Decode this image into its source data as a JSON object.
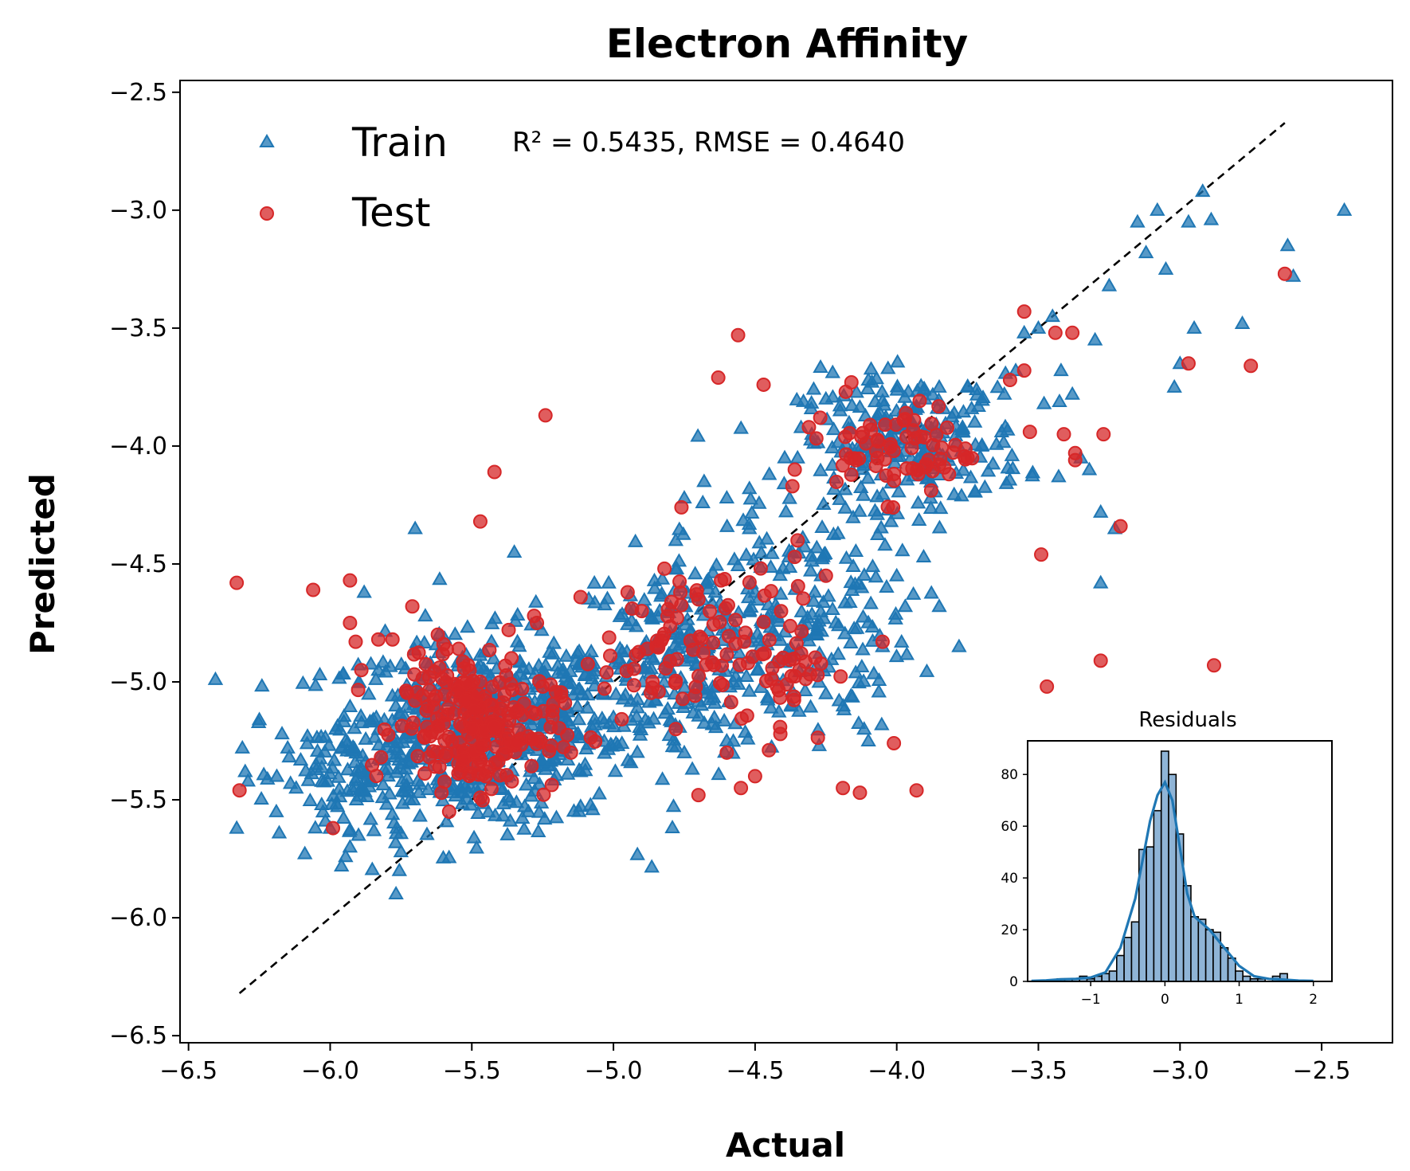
{
  "chart_data": {
    "type": "scatter",
    "title": "Electron Affinity",
    "xlabel": "Actual",
    "ylabel": "Predicted",
    "xlim": [
      -6.53,
      -2.25
    ],
    "ylim": [
      -6.53,
      -2.45
    ],
    "xticks": [
      -6.5,
      -6.0,
      -5.5,
      -5.0,
      -4.5,
      -4.0,
      -3.5,
      -3.0,
      -2.5
    ],
    "yticks": [
      -6.5,
      -6.0,
      -5.5,
      -5.0,
      -4.5,
      -4.0,
      -3.5,
      -3.0,
      -2.5
    ],
    "metrics_text": "R² = 0.5435,  RMSE = 0.4640",
    "identity_line": {
      "x": [
        -6.32,
        -2.63
      ],
      "y": [
        -6.32,
        -2.63
      ],
      "style": "dashed",
      "color": "#000000"
    },
    "legend_placement": "upper-left",
    "series": [
      {
        "name": "Train",
        "marker": "triangle",
        "color": "#1f77b4",
        "points": [
          [
            -6.33,
            -5.62
          ],
          [
            -6.31,
            -5.28
          ],
          [
            -6.3,
            -5.38
          ],
          [
            -6.29,
            -5.42
          ],
          [
            -6.25,
            -5.16
          ],
          [
            -6.19,
            -5.55
          ],
          [
            -6.18,
            -5.64
          ],
          [
            -6.17,
            -5.22
          ],
          [
            -6.15,
            -5.28
          ],
          [
            -6.14,
            -5.43
          ],
          [
            -6.12,
            -5.45
          ],
          [
            -6.08,
            -5.23
          ],
          [
            -6.05,
            -5.35
          ],
          [
            -6.03,
            -5.52
          ],
          [
            -6.0,
            -5.62
          ],
          [
            -5.98,
            -5.2
          ],
          [
            -5.96,
            -5.78
          ],
          [
            -5.93,
            -5.7
          ],
          [
            -5.9,
            -5.65
          ],
          [
            -5.88,
            -4.62
          ],
          [
            -5.83,
            -4.95
          ],
          [
            -5.75,
            -5.72
          ],
          [
            -5.7,
            -4.35
          ],
          [
            -5.62,
            -5.3
          ],
          [
            -5.5,
            -5.1
          ],
          [
            -5.35,
            -4.45
          ],
          [
            -5.2,
            -5.05
          ],
          [
            -5.1,
            -5.35
          ],
          [
            -5.0,
            -5.15
          ],
          [
            -4.98,
            -4.9
          ],
          [
            -4.85,
            -4.85
          ],
          [
            -4.78,
            -4.4
          ],
          [
            -4.75,
            -4.22
          ],
          [
            -4.68,
            -4.15
          ],
          [
            -4.6,
            -4.22
          ],
          [
            -4.52,
            -4.18
          ],
          [
            -4.45,
            -4.12
          ],
          [
            -4.35,
            -4.05
          ],
          [
            -4.3,
            -3.95
          ],
          [
            -4.25,
            -3.8
          ],
          [
            -4.2,
            -3.85
          ],
          [
            -4.1,
            -3.72
          ],
          [
            -4.02,
            -4.32
          ],
          [
            -3.95,
            -4.05
          ],
          [
            -3.9,
            -3.8
          ],
          [
            -3.85,
            -3.75
          ],
          [
            -3.75,
            -3.75
          ],
          [
            -3.7,
            -4.0
          ],
          [
            -3.62,
            -3.78
          ],
          [
            -3.58,
            -3.68
          ],
          [
            -3.55,
            -3.52
          ],
          [
            -3.5,
            -3.5
          ],
          [
            -3.48,
            -3.82
          ],
          [
            -3.45,
            -3.45
          ],
          [
            -3.42,
            -3.68
          ],
          [
            -3.38,
            -3.78
          ],
          [
            -3.35,
            -4.05
          ],
          [
            -3.32,
            -4.1
          ],
          [
            -3.3,
            -3.55
          ],
          [
            -3.28,
            -4.28
          ],
          [
            -3.25,
            -3.32
          ],
          [
            -3.23,
            -4.35
          ],
          [
            -3.28,
            -4.58
          ],
          [
            -3.15,
            -3.05
          ],
          [
            -3.12,
            -3.18
          ],
          [
            -3.08,
            -3.0
          ],
          [
            -3.05,
            -3.25
          ],
          [
            -3.02,
            -3.75
          ],
          [
            -3.0,
            -3.65
          ],
          [
            -2.97,
            -3.05
          ],
          [
            -2.95,
            -3.5
          ],
          [
            -2.92,
            -2.92
          ],
          [
            -2.89,
            -3.04
          ],
          [
            -2.78,
            -3.48
          ],
          [
            -2.62,
            -3.15
          ],
          [
            -2.6,
            -3.28
          ],
          [
            -2.42,
            -3.0
          ],
          [
            -4.0,
            -4.55
          ],
          [
            -3.97,
            -4.68
          ],
          [
            -4.05,
            -4.85
          ],
          [
            -4.1,
            -5.25
          ],
          [
            -4.25,
            -5.05
          ],
          [
            -4.6,
            -5.25
          ],
          [
            -4.75,
            -5.3
          ],
          [
            -5.25,
            -5.35
          ],
          [
            -5.3,
            -5.55
          ],
          [
            -5.4,
            -5.45
          ],
          [
            -3.78,
            -4.85
          ],
          [
            -3.85,
            -4.68
          ],
          [
            -4.52,
            -4.35
          ],
          [
            -4.5,
            -4.62
          ],
          [
            -4.8,
            -4.95
          ],
          [
            -4.7,
            -5.0
          ]
        ],
        "clusters": [
          {
            "center": [
              -5.5,
              -5.22
            ],
            "spread": [
              0.26,
              0.2
            ],
            "count": 520
          },
          {
            "center": [
              -4.75,
              -4.9
            ],
            "spread": [
              0.2,
              0.22
            ],
            "count": 200
          },
          {
            "center": [
              -4.35,
              -4.72
            ],
            "spread": [
              0.2,
              0.25
            ],
            "count": 180
          },
          {
            "center": [
              -3.95,
              -3.98
            ],
            "spread": [
              0.2,
              0.14
            ],
            "count": 230
          },
          {
            "center": [
              -5.12,
              -5.12
            ],
            "spread": [
              0.2,
              0.18
            ],
            "count": 110
          },
          {
            "center": [
              -5.9,
              -5.4
            ],
            "spread": [
              0.13,
              0.16
            ],
            "count": 80
          }
        ]
      },
      {
        "name": "Test",
        "marker": "circle",
        "color": "#d62728",
        "points": [
          [
            -6.33,
            -4.58
          ],
          [
            -6.32,
            -5.46
          ],
          [
            -6.06,
            -4.61
          ],
          [
            -5.99,
            -5.62
          ],
          [
            -5.93,
            -4.57
          ],
          [
            -5.93,
            -4.75
          ],
          [
            -5.91,
            -4.83
          ],
          [
            -5.89,
            -4.95
          ],
          [
            -5.83,
            -4.82
          ],
          [
            -5.78,
            -4.82
          ],
          [
            -5.71,
            -4.68
          ],
          [
            -5.62,
            -4.8
          ],
          [
            -5.6,
            -4.84
          ],
          [
            -5.58,
            -5.55
          ],
          [
            -5.47,
            -4.32
          ],
          [
            -5.42,
            -4.11
          ],
          [
            -5.37,
            -4.78
          ],
          [
            -5.36,
            -4.9
          ],
          [
            -5.28,
            -4.72
          ],
          [
            -5.27,
            -4.75
          ],
          [
            -5.24,
            -3.87
          ],
          [
            -5.25,
            -5.02
          ],
          [
            -5.22,
            -5.27
          ],
          [
            -5.15,
            -5.3
          ],
          [
            -4.95,
            -4.62
          ],
          [
            -4.9,
            -4.7
          ],
          [
            -4.88,
            -4.86
          ],
          [
            -4.82,
            -4.52
          ],
          [
            -4.76,
            -4.26
          ],
          [
            -4.7,
            -5.48
          ],
          [
            -4.63,
            -3.71
          ],
          [
            -4.56,
            -3.53
          ],
          [
            -4.55,
            -5.45
          ],
          [
            -4.5,
            -5.4
          ],
          [
            -4.47,
            -3.74
          ],
          [
            -4.36,
            -4.47
          ],
          [
            -4.36,
            -4.1
          ],
          [
            -4.31,
            -3.92
          ],
          [
            -4.27,
            -3.88
          ],
          [
            -4.18,
            -3.77
          ],
          [
            -4.19,
            -5.45
          ],
          [
            -4.13,
            -5.47
          ],
          [
            -4.16,
            -3.73
          ],
          [
            -4.05,
            -4.83
          ],
          [
            -4.01,
            -5.26
          ],
          [
            -3.93,
            -5.46
          ],
          [
            -3.75,
            -4.05
          ],
          [
            -3.55,
            -3.43
          ],
          [
            -3.53,
            -3.94
          ],
          [
            -3.49,
            -4.46
          ],
          [
            -3.47,
            -5.02
          ],
          [
            -3.44,
            -3.52
          ],
          [
            -3.41,
            -3.95
          ],
          [
            -3.38,
            -3.52
          ],
          [
            -3.37,
            -4.03
          ],
          [
            -3.37,
            -4.06
          ],
          [
            -3.28,
            -4.91
          ],
          [
            -3.27,
            -3.95
          ],
          [
            -3.21,
            -4.34
          ],
          [
            -2.97,
            -3.65
          ],
          [
            -2.88,
            -4.93
          ],
          [
            -2.75,
            -3.66
          ],
          [
            -2.63,
            -3.27
          ],
          [
            -3.55,
            -3.68
          ],
          [
            -3.6,
            -3.72
          ],
          [
            -4.25,
            -4.55
          ],
          [
            -4.35,
            -4.4
          ],
          [
            -4.78,
            -5.2
          ],
          [
            -4.6,
            -5.3
          ],
          [
            -4.7,
            -4.65
          ]
        ],
        "clusters": [
          {
            "center": [
              -5.48,
              -5.2
            ],
            "spread": [
              0.14,
              0.13
            ],
            "count": 200
          },
          {
            "center": [
              -4.78,
              -4.88
            ],
            "spread": [
              0.13,
              0.15
            ],
            "count": 70
          },
          {
            "center": [
              -4.4,
              -4.9
            ],
            "spread": [
              0.09,
              0.18
            ],
            "count": 45
          },
          {
            "center": [
              -3.97,
              -4.02
            ],
            "spread": [
              0.12,
              0.1
            ],
            "count": 70
          },
          {
            "center": [
              -5.6,
              -5.0
            ],
            "spread": [
              0.13,
              0.11
            ],
            "count": 35
          }
        ]
      }
    ],
    "inset": {
      "type": "histogram",
      "title": "Residuals",
      "xlim": [
        -1.85,
        2.25
      ],
      "ylim": [
        0,
        93
      ],
      "xticks": [
        -1,
        0,
        1,
        2
      ],
      "yticks": [
        0,
        20,
        40,
        60,
        80
      ],
      "bin_width": 0.1,
      "bins": [
        [
          -1.7,
          0
        ],
        [
          -1.6,
          0
        ],
        [
          -1.5,
          0
        ],
        [
          -1.4,
          1
        ],
        [
          -1.3,
          1
        ],
        [
          -1.2,
          1
        ],
        [
          -1.1,
          2
        ],
        [
          -1.0,
          1
        ],
        [
          -0.9,
          2
        ],
        [
          -0.8,
          3
        ],
        [
          -0.7,
          4
        ],
        [
          -0.6,
          10
        ],
        [
          -0.5,
          17
        ],
        [
          -0.4,
          23
        ],
        [
          -0.3,
          51
        ],
        [
          -0.2,
          52
        ],
        [
          -0.1,
          66
        ],
        [
          0.0,
          89
        ],
        [
          0.1,
          80
        ],
        [
          0.2,
          57
        ],
        [
          0.3,
          37
        ],
        [
          0.4,
          25
        ],
        [
          0.5,
          24
        ],
        [
          0.6,
          20
        ],
        [
          0.7,
          19
        ],
        [
          0.8,
          13
        ],
        [
          0.9,
          9
        ],
        [
          1.0,
          4
        ],
        [
          1.1,
          2
        ],
        [
          1.2,
          1
        ],
        [
          1.3,
          1
        ],
        [
          1.4,
          0
        ],
        [
          1.5,
          2
        ],
        [
          1.6,
          3
        ],
        [
          1.7,
          0
        ],
        [
          1.8,
          0
        ],
        [
          1.9,
          0
        ]
      ],
      "kde_x": [
        -1.8,
        -1.6,
        -1.4,
        -1.2,
        -1.0,
        -0.8,
        -0.6,
        -0.4,
        -0.3,
        -0.2,
        -0.1,
        0.0,
        0.1,
        0.2,
        0.3,
        0.4,
        0.6,
        0.8,
        1.0,
        1.2,
        1.4,
        1.6,
        1.8,
        2.0
      ],
      "kde_y": [
        0.2,
        0.4,
        0.8,
        1.0,
        1.5,
        3.5,
        13,
        32,
        47,
        62,
        72,
        77,
        70,
        52,
        34,
        25,
        20,
        13,
        6,
        2,
        1,
        0.7,
        0.3,
        0.2
      ],
      "bar_color": "#8fb4d6",
      "kde_color": "#1f77b4"
    }
  }
}
